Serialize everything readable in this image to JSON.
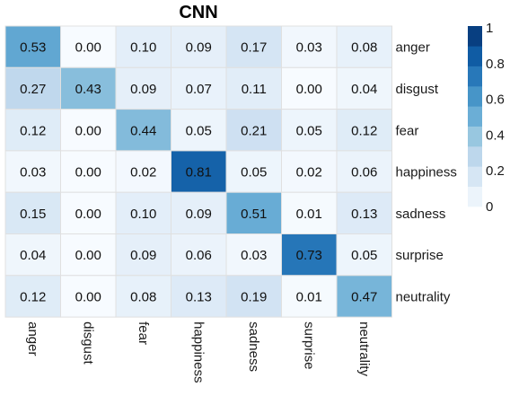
{
  "chart_data": {
    "type": "heatmap",
    "title": "CNN",
    "rows": [
      "anger",
      "disgust",
      "fear",
      "happiness",
      "sadness",
      "surprise",
      "neutrality"
    ],
    "columns": [
      "anger",
      "disgust",
      "fear",
      "happiness",
      "sadness",
      "surprise",
      "neutrality"
    ],
    "values": [
      [
        0.53,
        0.0,
        0.1,
        0.09,
        0.17,
        0.03,
        0.08
      ],
      [
        0.27,
        0.43,
        0.09,
        0.07,
        0.11,
        0.0,
        0.04
      ],
      [
        0.12,
        0.0,
        0.44,
        0.05,
        0.21,
        0.05,
        0.12
      ],
      [
        0.03,
        0.0,
        0.02,
        0.81,
        0.05,
        0.02,
        0.06
      ],
      [
        0.15,
        0.0,
        0.1,
        0.09,
        0.51,
        0.01,
        0.13
      ],
      [
        0.04,
        0.0,
        0.09,
        0.06,
        0.03,
        0.73,
        0.05
      ],
      [
        0.12,
        0.0,
        0.08,
        0.13,
        0.19,
        0.01,
        0.47
      ]
    ],
    "value_range": [
      0,
      1
    ],
    "colormap": "Blues",
    "colorbar": {
      "ticks": [
        0,
        0.2,
        0.4,
        0.6,
        0.8,
        1
      ],
      "tick_labels": [
        "0",
        "0.2",
        "0.4",
        "0.6",
        "0.8",
        "1"
      ],
      "placement": "right",
      "steps": 9
    },
    "row_labels_side": "right",
    "column_labels_side": "bottom",
    "column_label_rotation": "vertical",
    "grid": true,
    "colors": {
      "grid_line": "#e0e0e0",
      "label_dark": "#111111",
      "label_light": "#111111"
    }
  }
}
